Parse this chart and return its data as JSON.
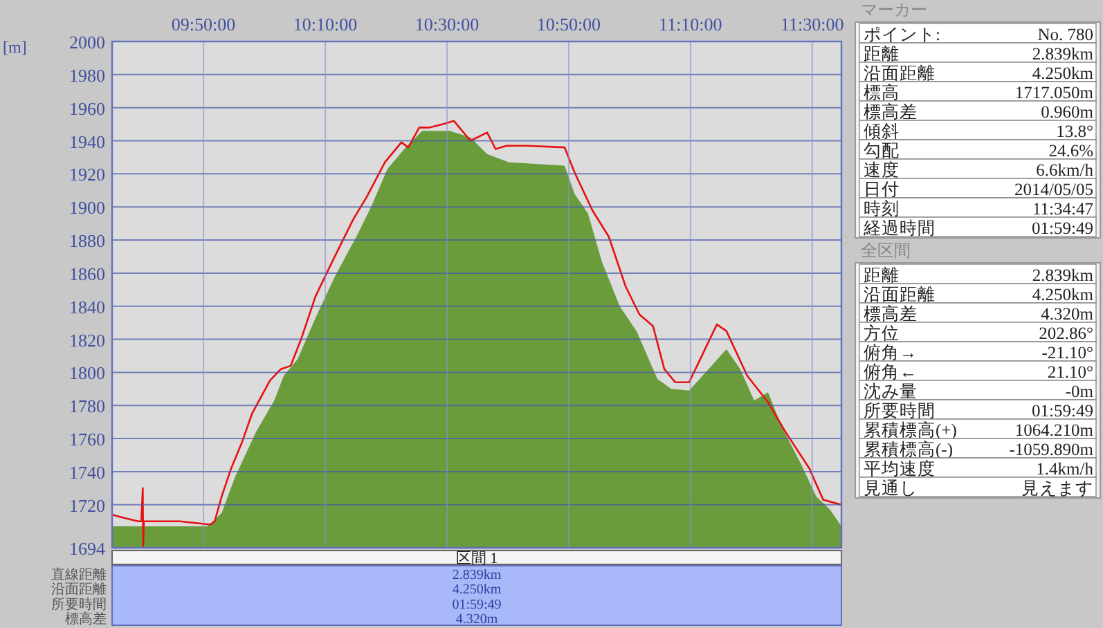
{
  "chart_data": [
    {
      "type": "area",
      "ylabel": "[m]",
      "xlim": [
        9.583,
        11.58
      ],
      "ylim": [
        1694,
        2000
      ],
      "xticks": [
        {
          "value": 9.8333,
          "label": "09:50:00"
        },
        {
          "value": 10.1667,
          "label": "10:10:00"
        },
        {
          "value": 10.5,
          "label": "10:30:00"
        },
        {
          "value": 10.8333,
          "label": "10:50:00"
        },
        {
          "value": 11.1667,
          "label": "11:10:00"
        },
        {
          "value": 11.5,
          "label": "11:30:00"
        }
      ],
      "yticks": [
        1694,
        1720,
        1740,
        1760,
        1780,
        1800,
        1820,
        1840,
        1860,
        1880,
        1900,
        1920,
        1940,
        1960,
        1980,
        2000
      ],
      "grid": true,
      "series": [
        {
          "type": "area",
          "color": "#6a9c3c",
          "x": [
            9.583,
            9.845,
            9.883,
            9.92,
            9.977,
            10.027,
            10.053,
            10.091,
            10.14,
            10.193,
            10.254,
            10.292,
            10.337,
            10.383,
            10.432,
            10.508,
            10.564,
            10.61,
            10.67,
            10.822,
            10.849,
            10.886,
            10.924,
            10.973,
            11.019,
            11.076,
            11.114,
            11.163,
            11.208,
            11.265,
            11.303,
            11.341,
            11.379,
            11.417,
            11.473,
            11.511,
            11.549,
            11.58
          ],
          "values": [
            1707,
            1707,
            1715,
            1737,
            1764,
            1783,
            1798,
            1808,
            1833,
            1858,
            1883,
            1900,
            1923,
            1935,
            1946,
            1946,
            1942,
            1932,
            1927,
            1925,
            1908,
            1896,
            1867,
            1840,
            1825,
            1796,
            1790,
            1789,
            1800,
            1814,
            1802,
            1783,
            1788,
            1767,
            1743,
            1725,
            1717,
            1707
          ]
        },
        {
          "type": "line",
          "color": "#e81010",
          "x": [
            9.583,
            9.617,
            9.655,
            9.663,
            9.667,
            9.668,
            9.67,
            9.769,
            9.852,
            9.864,
            9.883,
            9.909,
            9.939,
            9.966,
            10.015,
            10.045,
            10.072,
            10.102,
            10.14,
            10.186,
            10.242,
            10.28,
            10.33,
            10.375,
            10.394,
            10.424,
            10.451,
            10.489,
            10.519,
            10.564,
            10.61,
            10.633,
            10.663,
            10.716,
            10.822,
            10.849,
            10.898,
            10.943,
            10.989,
            11.027,
            11.064,
            11.095,
            11.125,
            11.163,
            11.189,
            11.239,
            11.265,
            11.322,
            11.379,
            11.424,
            11.492,
            11.53,
            11.58
          ],
          "values": [
            1714,
            1712,
            1710,
            1710,
            1730,
            1695,
            1710,
            1710,
            1708,
            1710,
            1725,
            1742,
            1758,
            1775,
            1795,
            1802,
            1804,
            1821,
            1846,
            1867,
            1892,
            1906,
            1927,
            1939,
            1936,
            1948,
            1948,
            1950,
            1952,
            1940,
            1945,
            1935,
            1937,
            1937,
            1936,
            1921,
            1898,
            1882,
            1852,
            1835,
            1828,
            1802,
            1794,
            1794,
            1806,
            1829,
            1825,
            1798,
            1782,
            1765,
            1742,
            1723,
            1720
          ]
        }
      ]
    },
    {
      "type": "other",
      "title": "マーカー",
      "annotations": [
        "ポイント:",
        "No. 780",
        "距離",
        "2.839km",
        "沿面距離",
        "4.250km",
        "標高",
        "1717.050m",
        "標高差",
        "0.960m",
        "傾斜",
        "13.8°",
        "勾配",
        "24.6%",
        "速度",
        "6.6km/h",
        "日付",
        "2014/05/05",
        "時刻",
        "11:34:47",
        "経過時間",
        "01:59:49"
      ]
    },
    {
      "type": "other",
      "title": "全区間",
      "annotations": [
        "距離",
        "2.839km",
        "沿面距離",
        "4.250km",
        "標高差",
        "4.320m",
        "方位",
        "202.86°",
        "俯角→",
        "-21.10°",
        "俯角←",
        "21.10°",
        "沈み量",
        "-0m",
        "所要時間",
        "01:59:49",
        "累積標高(+)",
        "1064.210m",
        "累積標高(-)",
        "-1059.890m",
        "平均速度",
        "1.4km/h",
        "見通し",
        "見えます"
      ]
    },
    {
      "type": "other",
      "title": "区間 1",
      "annotations": [
        "直線距離",
        "2.839km",
        "沿面距離",
        "4.250km",
        "所要時間",
        "01:59:49",
        "標高差",
        "4.320m"
      ]
    }
  ]
}
